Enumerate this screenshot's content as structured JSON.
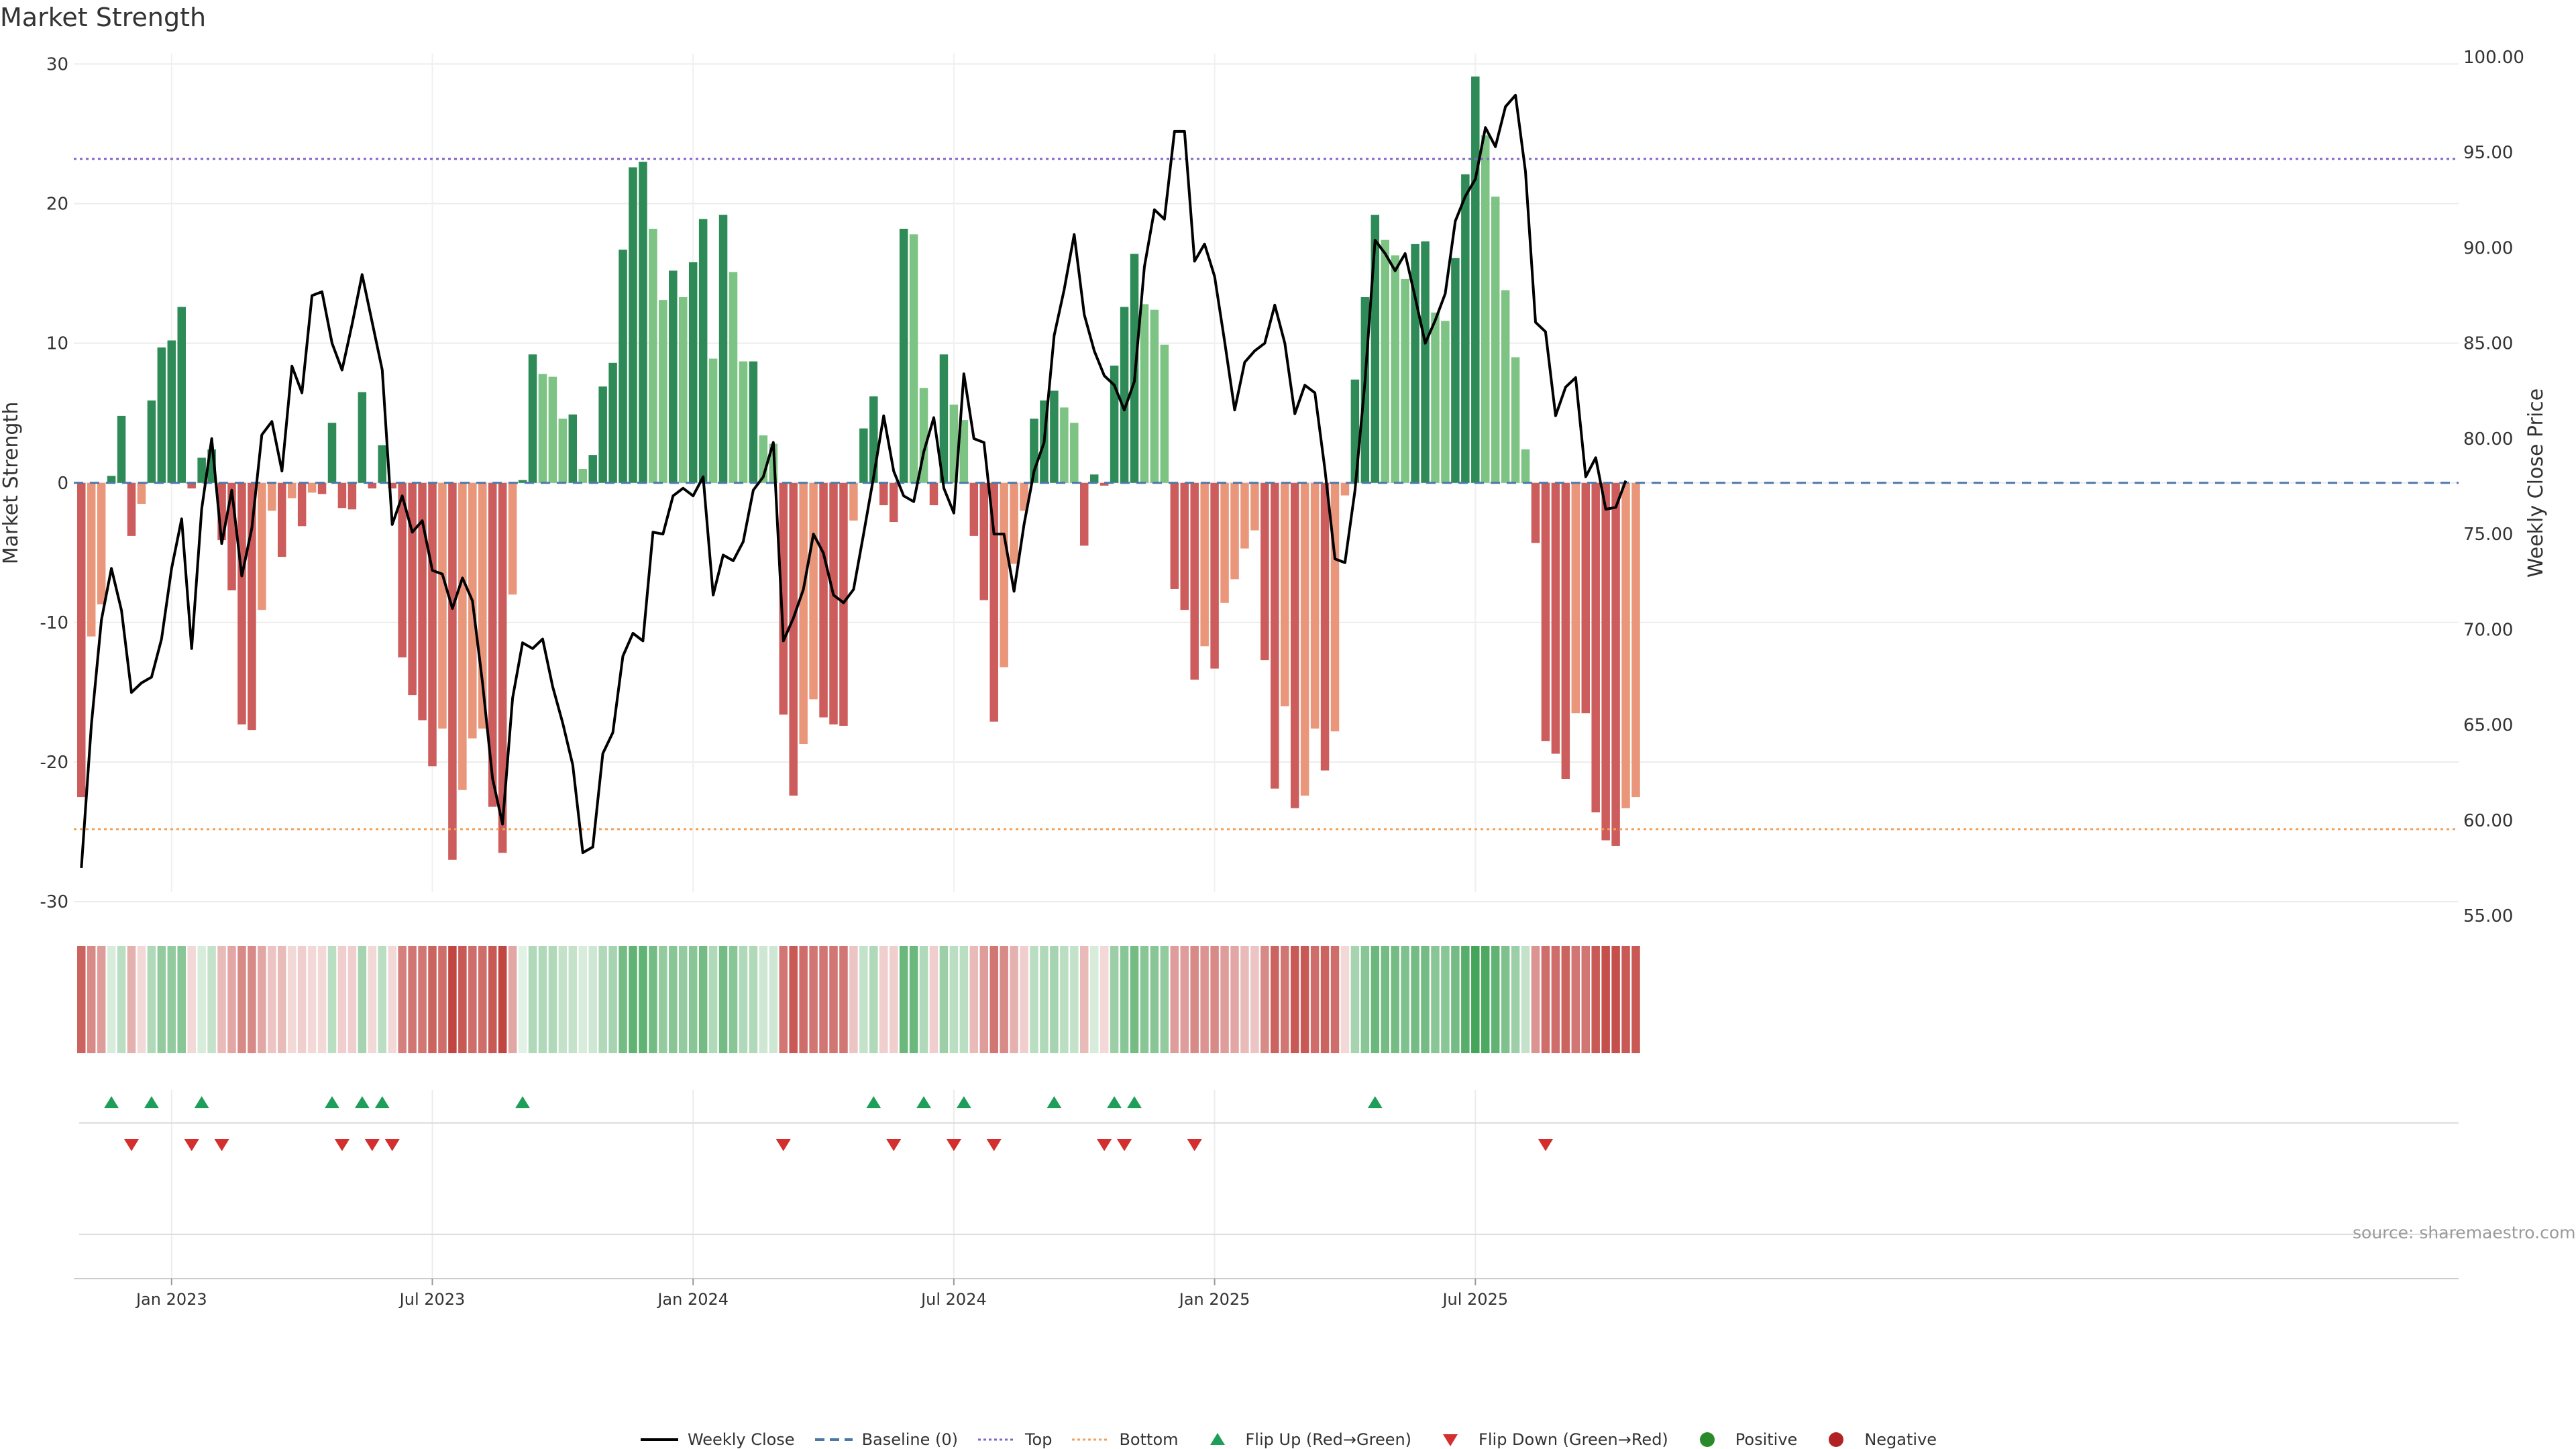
{
  "page": {
    "title": "Market Strength",
    "source": "source: sharemaestro.com"
  },
  "colors": {
    "strong_up": "#2e8b57",
    "weak_up": "#7dc383",
    "strong_down": "#cd5c5c",
    "weak_down": "#e9967a",
    "price_line": "#000000",
    "baseline": "#4c78a8",
    "top": "#8064c8",
    "bottom": "#f0a05a",
    "flip_up": "#1f9e5a",
    "flip_down": "#d32f2f",
    "positive": "#2a8a2a",
    "negative": "#b22222"
  },
  "chart_data": {
    "type": "bar",
    "title": "Market Strength",
    "ylabel_left": "Market Strength",
    "ylabel_right": "Weekly Close Price",
    "ylim_left": [
      -31,
      30.5
    ],
    "ylim_right": [
      55,
      100
    ],
    "left_ticks": [
      30,
      20,
      10,
      0,
      -10,
      -20,
      -30
    ],
    "right_ticks": [
      "100.00",
      "95.00",
      "90.00",
      "85.00",
      "80.00",
      "75.00",
      "70.00",
      "65.00",
      "60.00",
      "55.00"
    ],
    "x_ticks": [
      {
        "label": "Jan 2023",
        "index": 9
      },
      {
        "label": "Jul 2023",
        "index": 35
      },
      {
        "label": "Jan 2024",
        "index": 61
      },
      {
        "label": "Jul 2024",
        "index": 87
      },
      {
        "label": "Jan 2025",
        "index": 113
      },
      {
        "label": "Jul 2025",
        "index": 139
      }
    ],
    "top_level": 23.2,
    "bottom_level": -24.8,
    "baseline": 0,
    "strength": [
      -22.5,
      -11,
      -8.7,
      0.5,
      4.8,
      -3.8,
      -1.5,
      5.9,
      9.7,
      10.2,
      12.6,
      -0.4,
      1.8,
      2.4,
      -4.1,
      -7.7,
      -17.3,
      -17.7,
      -9.1,
      -2,
      -5.3,
      -1.1,
      -3.1,
      -0.7,
      -0.8,
      4.3,
      -1.8,
      -1.9,
      6.5,
      -0.4,
      2.7,
      -0.4,
      -12.5,
      -15.2,
      -17,
      -20.3,
      -17.6,
      -27,
      -22,
      -18.3,
      -17.6,
      -23.2,
      -26.5,
      -8,
      0.2,
      9.2,
      7.8,
      7.6,
      4.6,
      4.9,
      1,
      2,
      6.9,
      8.6,
      16.7,
      22.6,
      23,
      18.2,
      13.1,
      15.2,
      13.3,
      15.8,
      18.9,
      8.9,
      19.2,
      15.1,
      8.7,
      8.7,
      3.4,
      2.8,
      -16.6,
      -22.4,
      -18.7,
      -15.5,
      -16.8,
      -17.3,
      -17.4,
      -2.7,
      3.9,
      6.2,
      -1.6,
      -2.8,
      18.2,
      17.8,
      6.8,
      -1.6,
      9.2,
      5.6,
      4.5,
      -3.8,
      -8.4,
      -17.1,
      -13.2,
      -5.8,
      -2,
      4.6,
      5.9,
      6.6,
      5.4,
      4.3,
      -4.5,
      0.6,
      -0.2,
      8.4,
      12.6,
      16.4,
      12.8,
      12.4,
      9.9,
      -7.6,
      -9.1,
      -14.1,
      -11.7,
      -13.3,
      -8.6,
      -6.9,
      -4.7,
      -3.4,
      -12.7,
      -21.9,
      -16,
      -23.3,
      -22.4,
      -17.6,
      -20.6,
      -17.8,
      -0.9,
      7.4,
      13.3,
      19.2,
      17.4,
      16.3,
      14.6,
      17.1,
      17.3,
      12.2,
      11.6,
      16.1,
      22.1,
      29.1,
      24.9,
      20.5,
      13.8,
      9,
      2.4,
      -4.3,
      -18.5,
      -19.4,
      -21.2,
      -16.5,
      -16.5,
      -23.6,
      -25.6,
      -26,
      -23.3,
      -22.5
    ],
    "weekly_close": [
      57.5,
      65,
      70.5,
      73.2,
      71,
      66.7,
      67.2,
      67.5,
      69.5,
      73.2,
      75.8,
      69,
      76.3,
      80,
      74.5,
      77.3,
      72.8,
      75.3,
      80.2,
      80.9,
      78.3,
      83.8,
      82.4,
      87.5,
      87.7,
      85,
      83.6,
      86,
      88.6,
      86.1,
      83.6,
      75.5,
      77,
      75.1,
      75.7,
      73.1,
      72.9,
      71.1,
      72.7,
      71.5,
      67.2,
      62.2,
      59.8,
      66.4,
      69.3,
      69,
      69.5,
      67,
      65.1,
      62.9,
      58.3,
      58.6,
      63.5,
      64.6,
      68.6,
      69.8,
      69.4,
      75.1,
      75,
      77,
      77.4,
      77,
      78,
      71.8,
      73.9,
      73.6,
      74.6,
      77.3,
      78,
      79.8,
      69.4,
      70.6,
      72.1,
      75,
      74,
      71.8,
      71.4,
      72.1,
      75,
      78,
      81.2,
      78.3,
      77,
      76.7,
      79.3,
      81.1,
      77.4,
      76.1,
      83.4,
      80,
      79.8,
      75,
      75,
      72,
      75.5,
      78.3,
      79.8,
      85.4,
      87.8,
      90.7,
      86.5,
      84.6,
      83.3,
      82.8,
      81.5,
      83,
      89,
      92,
      91.5,
      96.1,
      96.1,
      89.3,
      90.2,
      88.5,
      85.1,
      81.5,
      84,
      84.6,
      85,
      87,
      85,
      81.3,
      82.8,
      82.4,
      78.4,
      73.7,
      73.5,
      77.3,
      83,
      90.4,
      89.7,
      88.8,
      89.7,
      87.4,
      85,
      86.2,
      87.6,
      91.4,
      92.7,
      93.6,
      96.3,
      95.3,
      97.4,
      98,
      94,
      86.1,
      85.6,
      81.2,
      82.7,
      83.2,
      78,
      79,
      76.3,
      76.4,
      77.8
    ],
    "heat_intensity": [
      0.8,
      0.6,
      0.5,
      0.2,
      0.35,
      0.4,
      0.2,
      0.4,
      0.55,
      0.55,
      0.6,
      0.2,
      0.2,
      0.3,
      0.35,
      0.45,
      0.6,
      0.6,
      0.45,
      0.3,
      0.35,
      0.2,
      0.25,
      0.2,
      0.2,
      0.35,
      0.25,
      0.25,
      0.45,
      0.2,
      0.35,
      0.2,
      0.65,
      0.7,
      0.7,
      0.8,
      0.75,
      0.95,
      0.85,
      0.75,
      0.75,
      0.85,
      0.95,
      0.45,
      0.15,
      0.4,
      0.4,
      0.4,
      0.3,
      0.3,
      0.2,
      0.25,
      0.4,
      0.45,
      0.7,
      0.8,
      0.8,
      0.7,
      0.55,
      0.6,
      0.55,
      0.6,
      0.7,
      0.4,
      0.7,
      0.6,
      0.4,
      0.4,
      0.25,
      0.25,
      0.7,
      0.85,
      0.75,
      0.7,
      0.7,
      0.7,
      0.7,
      0.3,
      0.3,
      0.4,
      0.25,
      0.25,
      0.75,
      0.75,
      0.4,
      0.25,
      0.5,
      0.35,
      0.35,
      0.35,
      0.5,
      0.7,
      0.6,
      0.4,
      0.25,
      0.35,
      0.4,
      0.45,
      0.35,
      0.3,
      0.35,
      0.2,
      0.2,
      0.5,
      0.6,
      0.7,
      0.6,
      0.6,
      0.55,
      0.5,
      0.5,
      0.6,
      0.55,
      0.6,
      0.5,
      0.45,
      0.35,
      0.3,
      0.6,
      0.8,
      0.7,
      0.85,
      0.85,
      0.75,
      0.8,
      0.75,
      0.2,
      0.45,
      0.6,
      0.75,
      0.7,
      0.7,
      0.65,
      0.7,
      0.7,
      0.6,
      0.6,
      0.7,
      0.85,
      0.95,
      0.9,
      0.8,
      0.65,
      0.5,
      0.3,
      0.55,
      0.75,
      0.75,
      0.8,
      0.7,
      0.7,
      0.85,
      0.9,
      0.9,
      0.85,
      0.85
    ],
    "flip_up_indices": [
      3,
      7,
      12,
      25,
      28,
      30,
      44,
      79,
      84,
      88,
      97,
      103,
      105,
      129
    ],
    "flip_down_indices": [
      5,
      11,
      14,
      26,
      29,
      31,
      70,
      81,
      87,
      91,
      102,
      104,
      111,
      146
    ]
  },
  "legend": [
    {
      "label": "Weekly Close",
      "kind": "line"
    },
    {
      "label": "Baseline (0)",
      "kind": "dash"
    },
    {
      "label": "Top",
      "kind": "dot-top"
    },
    {
      "label": "Bottom",
      "kind": "dot-bottom"
    },
    {
      "label": "Flip Up (Red→Green)",
      "kind": "tri-up"
    },
    {
      "label": "Flip Down (Green→Red)",
      "kind": "tri-down"
    },
    {
      "label": "Positive",
      "kind": "dot-pos"
    },
    {
      "label": "Negative",
      "kind": "dot-neg"
    }
  ]
}
